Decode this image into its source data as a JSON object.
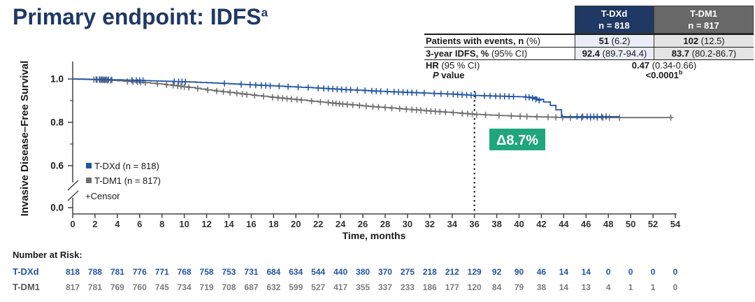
{
  "title": {
    "text": "Primary endpoint: IDFS",
    "sup": "a"
  },
  "colors": {
    "title_navy": "#1F3864",
    "header_navy": "#1F3864",
    "header_gray": "#686868",
    "row_light_blue": "#EAEDF6",
    "row_light_gray": "#E4E4E4",
    "curve_blue": "#2255A4",
    "curve_gray": "#6E6E6E",
    "risk_gray": "#7C7C7C",
    "annotation_green": "#1FA67A",
    "axis": "#444444",
    "text_black": "#1a1a1a"
  },
  "results_table": {
    "col_headers": [
      {
        "line1": "T-DXd",
        "line2": "n = 818"
      },
      {
        "line1": "T-DM1",
        "line2": "n = 817"
      }
    ],
    "rows": [
      {
        "label": [
          {
            "t": "Patients with events, n",
            "b": 1
          },
          {
            "t": " (%)"
          }
        ],
        "span": false,
        "shaded": true,
        "cells": [
          [
            {
              "t": "51",
              "b": 1
            },
            {
              "t": " (6.2)"
            }
          ],
          [
            {
              "t": "102",
              "b": 1
            },
            {
              "t": " (12.5)"
            }
          ]
        ]
      },
      {
        "label": [
          {
            "t": "3-year IDFS, %",
            "b": 1
          },
          {
            "t": " (95% CI)"
          }
        ],
        "span": false,
        "shaded": true,
        "cells": [
          [
            {
              "t": "92.4",
              "b": 1
            },
            {
              "t": " (89.7-94.4)"
            }
          ],
          [
            {
              "t": "83.7",
              "b": 1
            },
            {
              "t": " (80.2-86.7)"
            }
          ]
        ]
      },
      {
        "label": [
          {
            "t": "HR",
            "b": 1
          },
          {
            "t": " (95 % CI)"
          }
        ],
        "span": true,
        "shaded": false,
        "cells": [
          [
            {
              "t": "0.47",
              "b": 1
            },
            {
              "t": " (0.34-0.66)"
            }
          ]
        ]
      },
      {
        "label": [
          {
            "t": "P",
            "b": 1,
            "i": 1
          },
          {
            "t": " value",
            "b": 1
          }
        ],
        "span": true,
        "shaded": false,
        "indent": true,
        "cells": [
          [
            {
              "t": "<0.0001",
              "b": 1
            },
            {
              "t": "b",
              "b": 1,
              "sup": 1
            }
          ]
        ]
      }
    ]
  },
  "chart_data": {
    "type": "line",
    "subtype": "kaplan-meier",
    "title": "",
    "xlabel": "Time, months",
    "ylabel": "Invasive Disease–Free Survival",
    "x_ticks": [
      0,
      2,
      4,
      6,
      8,
      10,
      12,
      14,
      16,
      18,
      20,
      22,
      24,
      26,
      28,
      30,
      32,
      34,
      36,
      38,
      40,
      42,
      44,
      46,
      48,
      50,
      52,
      54
    ],
    "xlim": [
      0,
      54
    ],
    "y_ticks": [
      1.0,
      0.8,
      0.6,
      0.0
    ],
    "y_minor_ticks": [
      0.9,
      0.7
    ],
    "y_axis_break": true,
    "grid": false,
    "legend_position": "inside-left",
    "censor_legend": "+Censor",
    "dashed_line_month": 36,
    "annotation": {
      "text": "Δ8.7%",
      "at_month": 36
    },
    "series": [
      {
        "name": "T-DXd (n = 818)",
        "color": "#2255A4",
        "points": [
          [
            0,
            1.0
          ],
          [
            2,
            0.998
          ],
          [
            4,
            0.996
          ],
          [
            6,
            0.993
          ],
          [
            8,
            0.99
          ],
          [
            10,
            0.987
          ],
          [
            12,
            0.983
          ],
          [
            14,
            0.978
          ],
          [
            16,
            0.973
          ],
          [
            18,
            0.968
          ],
          [
            20,
            0.963
          ],
          [
            22,
            0.958
          ],
          [
            24,
            0.952
          ],
          [
            26,
            0.947
          ],
          [
            28,
            0.942
          ],
          [
            30,
            0.938
          ],
          [
            32,
            0.934
          ],
          [
            34,
            0.93
          ],
          [
            35,
            0.927
          ],
          [
            36,
            0.924
          ],
          [
            38,
            0.921
          ],
          [
            40,
            0.918
          ],
          [
            41,
            0.915
          ],
          [
            41.6,
            0.906
          ],
          [
            42.2,
            0.894
          ],
          [
            42.8,
            0.878
          ],
          [
            43.3,
            0.858
          ],
          [
            43.8,
            0.826
          ],
          [
            49,
            0.826
          ]
        ],
        "censor_months": [
          2.1,
          2.4,
          2.6,
          2.8,
          3.0,
          3.2,
          3.5,
          5.3,
          5.7,
          6.0,
          6.3,
          9.1,
          9.5,
          9.8,
          10.1,
          13.6,
          15.1,
          15.9,
          16.4,
          16.9,
          17.3,
          17.7,
          18.5,
          19.3,
          20.2,
          21.1,
          22.0,
          22.5,
          22.9,
          23.3,
          23.7,
          24.1,
          24.5,
          24.9,
          25.5,
          26.2,
          26.8,
          27.2,
          27.6,
          28.2,
          28.8,
          29.2,
          29.6,
          30.0,
          30.4,
          30.8,
          31.5,
          32.4,
          33.0,
          33.6,
          34.1,
          34.5,
          34.9,
          35.3,
          35.7,
          36.1,
          36.9,
          37.4,
          37.9,
          38.3,
          38.7,
          39.1,
          39.5,
          40.6,
          40.9,
          41.2,
          41.5,
          41.8,
          45.2,
          45.7,
          46.1,
          46.4,
          46.7,
          47.0,
          47.4,
          47.8
        ]
      },
      {
        "name": "T-DM1 (n = 817)",
        "color": "#6E6E6E",
        "points": [
          [
            0,
            1.0
          ],
          [
            2,
            0.997
          ],
          [
            4,
            0.992
          ],
          [
            6,
            0.985
          ],
          [
            8,
            0.976
          ],
          [
            10,
            0.964
          ],
          [
            12,
            0.95
          ],
          [
            14,
            0.938
          ],
          [
            16,
            0.926
          ],
          [
            18,
            0.915
          ],
          [
            20,
            0.905
          ],
          [
            22,
            0.895
          ],
          [
            24,
            0.885
          ],
          [
            26,
            0.876
          ],
          [
            28,
            0.868
          ],
          [
            30,
            0.86
          ],
          [
            32,
            0.852
          ],
          [
            34,
            0.845
          ],
          [
            35,
            0.841
          ],
          [
            36,
            0.837
          ],
          [
            38,
            0.832
          ],
          [
            40,
            0.828
          ],
          [
            42,
            0.825
          ],
          [
            44,
            0.822
          ],
          [
            53.7,
            0.822
          ]
        ],
        "censor_months": [
          1.9,
          2.2,
          2.5,
          2.7,
          2.9,
          3.1,
          3.4,
          4.9,
          5.4,
          5.8,
          6.1,
          6.5,
          7.6,
          8.4,
          9.0,
          9.4,
          9.7,
          10.0,
          10.4,
          11.2,
          12.1,
          12.9,
          13.5,
          14.1,
          14.7,
          15.2,
          15.6,
          16.3,
          17.1,
          17.9,
          18.4,
          18.8,
          19.2,
          19.6,
          20.1,
          20.5,
          21.4,
          22.2,
          22.9,
          23.3,
          23.6,
          23.9,
          24.2,
          24.6,
          25.1,
          25.7,
          26.3,
          26.9,
          27.4,
          28.0,
          28.6,
          29.3,
          29.9,
          30.4,
          30.8,
          31.2,
          31.7,
          32.1,
          32.5,
          32.9,
          33.4,
          34.1,
          34.9,
          35.4,
          35.8,
          36.2,
          37.0,
          38.2,
          39.3,
          40.1,
          40.7,
          41.6,
          42.6,
          43.3,
          43.9,
          44.6,
          45.6,
          46.4,
          47.0,
          47.5,
          48.1,
          49.0,
          53.6
        ]
      }
    ]
  },
  "risk_table": {
    "heading": "Number at Risk:",
    "rows": [
      {
        "label": "T-DXd",
        "label_color": "#2255A4",
        "value_color": "#2255A4",
        "values": [
          818,
          788,
          781,
          776,
          771,
          768,
          758,
          753,
          731,
          684,
          634,
          544,
          440,
          380,
          370,
          275,
          218,
          212,
          129,
          92,
          90,
          46,
          14,
          14,
          0,
          0,
          0,
          0
        ]
      },
      {
        "label": "T-DM1",
        "label_color": "#595959",
        "value_color": "#7C7C7C",
        "values": [
          817,
          781,
          769,
          760,
          745,
          734,
          719,
          708,
          687,
          632,
          599,
          527,
          417,
          355,
          337,
          233,
          186,
          177,
          120,
          84,
          79,
          38,
          14,
          13,
          4,
          1,
          1,
          0
        ]
      }
    ]
  }
}
